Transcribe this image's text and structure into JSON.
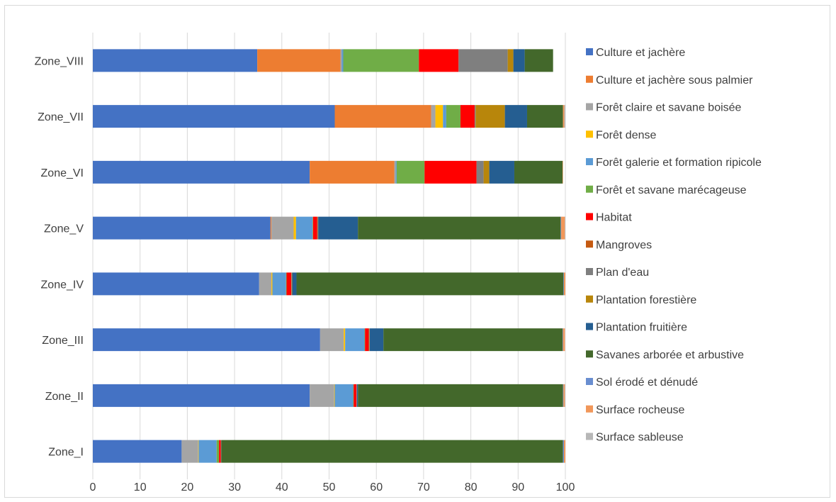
{
  "chart_data": {
    "type": "bar",
    "orientation": "horizontal",
    "stacked": true,
    "categories": [
      "Zone_I",
      "Zone_II",
      "Zone_III",
      "Zone_IV",
      "Zone_V",
      "Zone_VI",
      "Zone_VII",
      "Zone_VIII"
    ],
    "xlim": [
      0,
      100
    ],
    "xticks": [
      0,
      10,
      20,
      30,
      40,
      50,
      60,
      70,
      80,
      90,
      100
    ],
    "grid": "vertical",
    "legend_position": "right",
    "series": [
      {
        "name": "Culture et jachère",
        "color": "#4472C4",
        "values": [
          18.8,
          45.9,
          48.1,
          35.2,
          37.6,
          45.9,
          51.2,
          34.8
        ]
      },
      {
        "name": "Culture et jachère sous palmier",
        "color": "#ED7D31",
        "values": [
          0,
          0,
          0,
          0,
          0.2,
          17.9,
          20.4,
          17.6
        ]
      },
      {
        "name": "Forêt claire et savane boisée",
        "color": "#A5A5A5",
        "values": [
          3.5,
          5.2,
          5.0,
          2.6,
          4.7,
          0.3,
          0.9,
          0.3
        ]
      },
      {
        "name": "Forêt dense",
        "color": "#FFC000",
        "values": [
          0.1,
          0.1,
          0.3,
          0.2,
          0.5,
          0,
          1.6,
          0
        ]
      },
      {
        "name": "Forêt galerie et formation ripicole",
        "color": "#5B9BD5",
        "values": [
          3.8,
          3.9,
          4.1,
          2.9,
          3.5,
          0.2,
          0.7,
          0.3
        ]
      },
      {
        "name": "Forêt et savane marécageuse",
        "color": "#70AD47",
        "values": [
          0.5,
          0.1,
          0.1,
          0.1,
          0.1,
          5.9,
          3.0,
          16.0
        ]
      },
      {
        "name": "Habitat",
        "color": "#FF0000",
        "values": [
          0.4,
          0.6,
          0.8,
          1.0,
          0.9,
          11.0,
          3.0,
          8.4
        ]
      },
      {
        "name": "Mangroves",
        "color": "#C55A11",
        "values": [
          0,
          0,
          0,
          0,
          0,
          0,
          0,
          0
        ]
      },
      {
        "name": "Plan d'eau",
        "color": "#7F7F7F",
        "values": [
          0.1,
          0.1,
          0.1,
          0.1,
          0.1,
          1.5,
          0.2,
          10.4
        ]
      },
      {
        "name": "Plantation forestière",
        "color": "#B8860B",
        "values": [
          0,
          0,
          0.1,
          0.1,
          0.1,
          1.2,
          6.2,
          1.2
        ]
      },
      {
        "name": "Plantation fruitière",
        "color": "#255E91",
        "values": [
          0,
          0.2,
          2.9,
          0.9,
          8.4,
          5.3,
          4.7,
          2.4
        ]
      },
      {
        "name": "Savanes arborée et arbustive",
        "color": "#43682B",
        "values": [
          72.3,
          43.4,
          37.9,
          56.5,
          42.9,
          10.2,
          7.6,
          6.0
        ]
      },
      {
        "name": "Sol érodé et dénudé",
        "color": "#698ED0",
        "values": [
          0.2,
          0.1,
          0.1,
          0.1,
          0.1,
          0,
          0,
          0
        ]
      },
      {
        "name": "Surface rocheuse",
        "color": "#F1975A",
        "values": [
          0.3,
          0.3,
          0.4,
          0.3,
          0.8,
          0.1,
          0.3,
          0
        ]
      },
      {
        "name": "Surface sableuse",
        "color": "#B7B7B7",
        "values": [
          0,
          0.1,
          0,
          0,
          0.1,
          0,
          0.2,
          0
        ]
      }
    ]
  }
}
